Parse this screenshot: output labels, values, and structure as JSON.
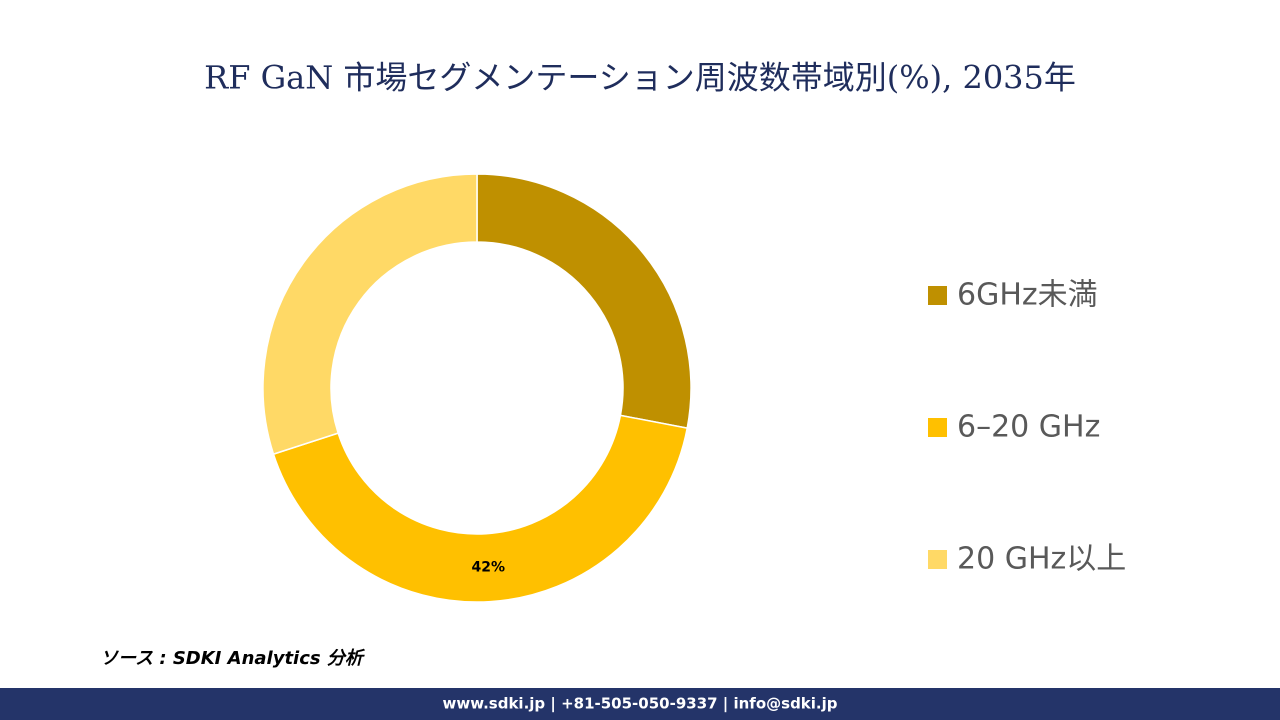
{
  "chart_data": {
    "type": "donut",
    "title": "RF GaN 市場セグメンテーション周波数帯域別(%), 2035年",
    "categories": [
      "6GHz未満",
      "6–20 GHz",
      "20 GHz以上"
    ],
    "values": [
      28,
      42,
      30
    ],
    "value_labels": [
      null,
      "42%",
      null
    ],
    "colors": [
      "#BF9000",
      "#FFC000",
      "#FFD966"
    ],
    "legend": "right"
  },
  "source": "ソース : SDKI Analytics 分析",
  "footer": "www.sdki.jp | +81-505-050-9337 | info@sdki.jp"
}
